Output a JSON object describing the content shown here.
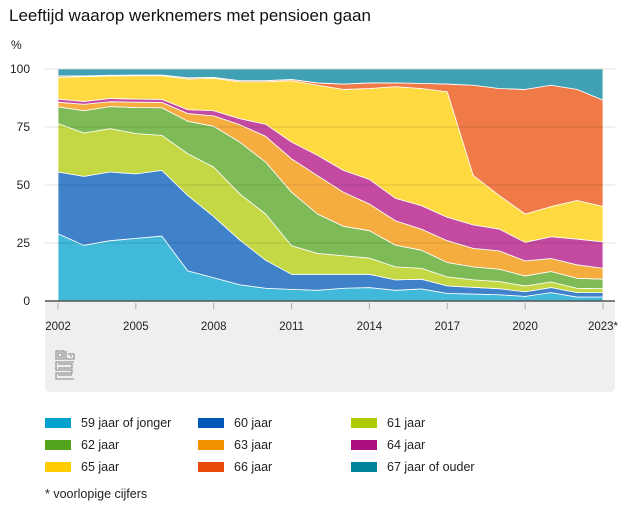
{
  "title": "Leeftijd waarop werknemers met pensioen gaan",
  "footnote": "* voorlopige cijfers",
  "chart_data": {
    "type": "area",
    "stacked": true,
    "title": "Leeftijd waarop werknemers met pensioen gaan",
    "ylabel": "%",
    "xlabel": "",
    "ylim": [
      0,
      100
    ],
    "yticks": [
      "0",
      "25",
      "50",
      "75",
      "100"
    ],
    "ytick_values": [
      0,
      25,
      50,
      75,
      100
    ],
    "x": [
      2002,
      2003,
      2004,
      2005,
      2006,
      2007,
      2008,
      2009,
      2010,
      2011,
      2012,
      2013,
      2014,
      2015,
      2016,
      2017,
      2018,
      2019,
      2020,
      2021,
      2022,
      2023
    ],
    "xticks": [
      "2002",
      "2005",
      "2008",
      "2011",
      "2014",
      "2017",
      "2020",
      "2023*"
    ],
    "xtick_values": [
      2002,
      2005,
      2008,
      2011,
      2014,
      2017,
      2020,
      2023
    ],
    "legend_position": "bottom",
    "series": [
      {
        "name": "59 jaar of jonger",
        "color": "#00a1cd",
        "values": [
          29,
          24,
          26,
          27,
          28,
          13,
          10,
          7,
          5.5,
          5,
          4.6,
          5.5,
          5.8,
          4.6,
          5.2,
          3.3,
          3,
          2.7,
          2,
          3.6,
          1.7,
          1.7
        ]
      },
      {
        "name": "60 jaar",
        "color": "#0058b8",
        "values": [
          26.6,
          29.7,
          29.6,
          27.8,
          28.3,
          32.5,
          26.4,
          19.3,
          12.1,
          6.5,
          6.9,
          6,
          5.7,
          4.5,
          4.2,
          3.2,
          2.9,
          2.6,
          2,
          2.2,
          1.9,
          1.9
        ]
      },
      {
        "name": "61 jaar",
        "color": "#afcb05",
        "values": [
          20.9,
          18.7,
          18.7,
          17.4,
          15.1,
          18,
          21.3,
          19.9,
          19.9,
          12.3,
          9,
          8,
          7,
          5.6,
          4.7,
          3.9,
          3.2,
          3.1,
          2.5,
          2.4,
          1.9,
          1.7
        ]
      },
      {
        "name": "62 jaar",
        "color": "#53a31d",
        "values": [
          7.2,
          9.6,
          9.5,
          11.2,
          11.9,
          14,
          17.6,
          22.3,
          22.4,
          23.1,
          17,
          12.7,
          11.8,
          9.4,
          7.8,
          6.2,
          5.6,
          5.3,
          4.3,
          4.5,
          4.3,
          4.1
        ]
      },
      {
        "name": "63 jaar",
        "color": "#f39200",
        "values": [
          2,
          2.8,
          2.1,
          2.3,
          2.3,
          3.3,
          4.5,
          7.5,
          11.1,
          14.4,
          16.5,
          14.7,
          11.5,
          10.5,
          9.1,
          9.4,
          8,
          7.9,
          6.5,
          5.6,
          5.8,
          4.7
        ]
      },
      {
        "name": "64 jaar",
        "color": "#af0e80",
        "values": [
          1.3,
          1.2,
          1.4,
          1.3,
          1.3,
          1.7,
          2.2,
          2.6,
          5.2,
          7.2,
          8.8,
          9.4,
          10.6,
          9.7,
          10.1,
          10.1,
          10.1,
          9.4,
          8,
          9.4,
          11.1,
          11.4
        ]
      },
      {
        "name": "65 jaar",
        "color": "#ffcc00",
        "values": [
          9.4,
          10.7,
          9.7,
          10.1,
          10.2,
          13.2,
          14,
          15.9,
          18.3,
          26.5,
          30.2,
          34.9,
          39.2,
          48.1,
          50.5,
          54.1,
          21.3,
          14.5,
          12.2,
          13,
          16.6,
          15.3
        ]
      },
      {
        "name": "66 jaar",
        "color": "#e94c0a",
        "values": [
          0.6,
          0.3,
          0.3,
          0.3,
          0.3,
          0.5,
          0.4,
          0.5,
          0.5,
          0.5,
          1,
          2.3,
          2.4,
          1.6,
          2.2,
          3.3,
          38.9,
          46.1,
          53.7,
          52.3,
          47.9,
          45.8
        ]
      },
      {
        "name": "67 jaar of ouder",
        "color": "#00819c",
        "values": [
          3,
          3,
          2.7,
          2.6,
          2.6,
          3.8,
          3.6,
          5,
          5,
          4.5,
          6,
          6.5,
          6,
          6,
          6.2,
          6.5,
          7,
          8.4,
          8.8,
          7,
          8.8,
          13.4
        ]
      }
    ]
  }
}
